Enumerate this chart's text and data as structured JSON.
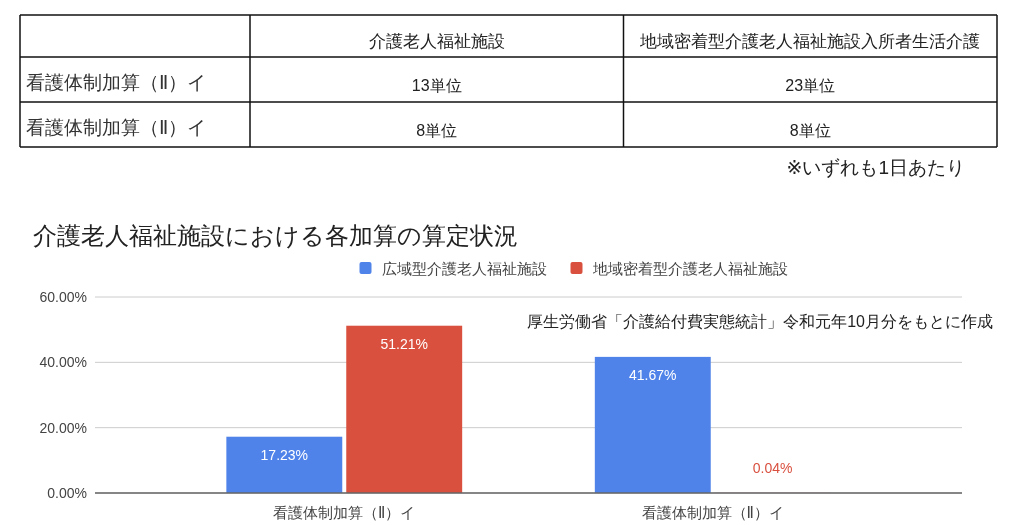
{
  "chart_data": [
    {
      "type": "other",
      "categories": [
        "介護老人福祉施設",
        "地域密着型介護老人福祉施設入所者生活介護"
      ],
      "y_categories": [
        "看護体制加算（Ⅱ）イ",
        "看護体制加算（Ⅱ）イ"
      ],
      "cell_labels": [
        [
          "13単位",
          "23単位"
        ],
        [
          "8単位",
          "8単位"
        ]
      ],
      "annotations": [
        "※いずれも1日あたり"
      ]
    },
    {
      "type": "bar",
      "title": "介護老人福祉施設における各加算の算定状況",
      "categories": [
        "看護体制加算（Ⅱ）イ",
        "看護体制加算（Ⅱ）イ"
      ],
      "series": [
        {
          "name": "広域型介護老人福祉施設",
          "color": "#5083ea",
          "values": [
            17.23,
            41.67
          ],
          "value_labels": [
            "17.23%",
            "41.67%"
          ]
        },
        {
          "name": "地域密着型介護老人福祉施設",
          "color": "#d9503f",
          "values": [
            51.21,
            0.04
          ],
          "value_labels": [
            "51.21%",
            "0.04%"
          ]
        }
      ],
      "ylim": [
        0,
        60
      ],
      "yticks": [
        {
          "value": 0,
          "label": "0.00%"
        },
        {
          "value": 20,
          "label": "20.00%"
        },
        {
          "value": 40,
          "label": "40.00%"
        },
        {
          "value": 60,
          "label": "60.00%"
        }
      ],
      "grid": "y",
      "legend": "top",
      "annotations": [
        "厚生労働省「介護給付費実態統計」令和元年10月分をもとに作成"
      ]
    }
  ]
}
